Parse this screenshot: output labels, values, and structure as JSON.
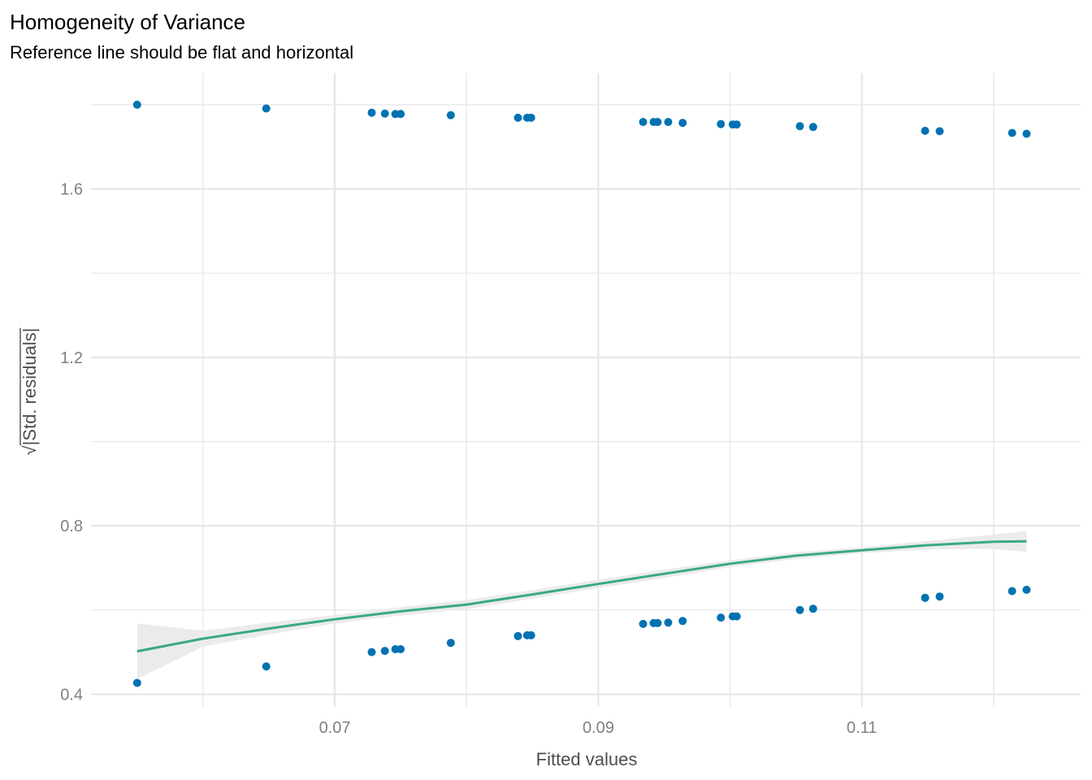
{
  "chart_data": {
    "type": "scatter",
    "title": "Homogeneity of Variance",
    "subtitle": "Reference line should be flat and horizontal",
    "xlabel": "Fitted values",
    "ylabel_radicand": "|Std. residuals|",
    "ylabel_radical": "√",
    "xlim": [
      0.0515,
      0.1266
    ],
    "ylim": [
      0.37,
      1.875
    ],
    "x_ticks": [
      0.07,
      0.09,
      0.11
    ],
    "x_tick_labels": [
      "0.07",
      "0.09",
      "0.11"
    ],
    "x_minor_ticks": [
      0.06,
      0.08,
      0.1,
      0.12
    ],
    "y_ticks": [
      0.4,
      0.8,
      1.2,
      1.6
    ],
    "y_tick_labels": [
      "0.4",
      "0.8",
      "1.2",
      "1.6"
    ],
    "y_minor_ticks": [
      0.6,
      1.0,
      1.4,
      1.8
    ],
    "grid": true,
    "colors": {
      "points": "#0072B2",
      "line": "#3AAA7E",
      "band": "#EBEBEB",
      "grid": "#E5E5E5"
    },
    "series": [
      {
        "x": [
          0.055,
          0.0648,
          0.0728,
          0.0738,
          0.0746,
          0.075,
          0.0788,
          0.0839,
          0.0846,
          0.0849,
          0.0934,
          0.0942,
          0.0945,
          0.0953,
          0.0964,
          0.0993,
          0.1002,
          0.1005,
          0.1053,
          0.1063,
          0.1148,
          0.1159,
          0.1214,
          0.1225
        ],
        "y": [
          1.8,
          1.791,
          1.781,
          1.779,
          1.778,
          1.778,
          1.775,
          1.769,
          1.769,
          1.769,
          1.759,
          1.759,
          1.759,
          1.759,
          1.757,
          1.754,
          1.753,
          1.753,
          1.749,
          1.747,
          1.738,
          1.737,
          1.733,
          1.731
        ]
      },
      {
        "x": [
          0.055,
          0.0648,
          0.0728,
          0.0738,
          0.0746,
          0.075,
          0.0788,
          0.0839,
          0.0846,
          0.0849,
          0.0934,
          0.0942,
          0.0945,
          0.0953,
          0.0964,
          0.0993,
          0.1002,
          0.1005,
          0.1053,
          0.1063,
          0.1148,
          0.1159,
          0.1214,
          0.1225
        ],
        "y": [
          0.427,
          0.466,
          0.5,
          0.503,
          0.507,
          0.507,
          0.522,
          0.538,
          0.54,
          0.54,
          0.567,
          0.569,
          0.569,
          0.57,
          0.574,
          0.582,
          0.585,
          0.585,
          0.6,
          0.603,
          0.629,
          0.632,
          0.645,
          0.648
        ]
      }
    ],
    "smooth": {
      "x": [
        0.055,
        0.06,
        0.065,
        0.07,
        0.075,
        0.08,
        0.085,
        0.09,
        0.095,
        0.1,
        0.105,
        0.11,
        0.115,
        0.12,
        0.1225
      ],
      "y": [
        0.502,
        0.532,
        0.556,
        0.578,
        0.597,
        0.613,
        0.637,
        0.662,
        0.686,
        0.71,
        0.729,
        0.742,
        0.754,
        0.762,
        0.763
      ],
      "lower": [
        0.436,
        0.513,
        0.542,
        0.568,
        0.587,
        0.602,
        0.627,
        0.652,
        0.676,
        0.702,
        0.721,
        0.735,
        0.744,
        0.745,
        0.738
      ],
      "upper": [
        0.568,
        0.551,
        0.57,
        0.588,
        0.607,
        0.624,
        0.647,
        0.672,
        0.696,
        0.718,
        0.737,
        0.749,
        0.764,
        0.779,
        0.788
      ]
    }
  }
}
